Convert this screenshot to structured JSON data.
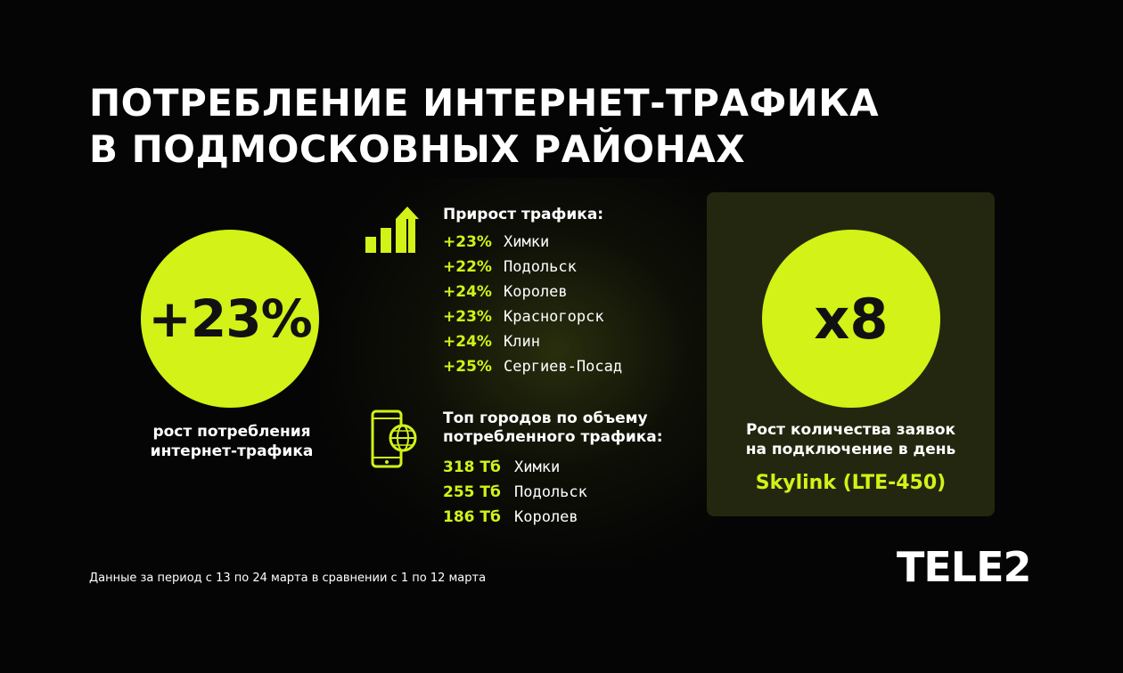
{
  "title": {
    "line1": "ПОТРЕБЛЕНИЕ ИНТЕРНЕТ-ТРАФИКА",
    "line2": "В ПОДМОСКОВНЫХ РАЙОНАХ"
  },
  "left_stat": {
    "value": "+23%",
    "caption_line1": "рост потребления",
    "caption_line2": "интернет-трафика"
  },
  "growth": {
    "title": "Прирост трафика:",
    "icon": "bar-chart-up-arrow-icon",
    "rows": [
      {
        "value": "+23%",
        "city": "Химки"
      },
      {
        "value": "+22%",
        "city": "Подольск"
      },
      {
        "value": "+24%",
        "city": "Королев"
      },
      {
        "value": "+23%",
        "city": "Красногорск"
      },
      {
        "value": "+24%",
        "city": "Клин"
      },
      {
        "value": "+25%",
        "city": "Сергиев-Посад"
      }
    ]
  },
  "top_cities": {
    "title_line1": "Топ городов по объему",
    "title_line2": "потребленного трафика:",
    "icon": "smartphone-globe-icon",
    "rows": [
      {
        "value": "318 Тб",
        "city": "Химки"
      },
      {
        "value": "255 Тб",
        "city": "Подольск"
      },
      {
        "value": "186 Тб",
        "city": "Королев"
      }
    ]
  },
  "right_stat": {
    "value": "x8",
    "caption_line1": "Рост количества заявок",
    "caption_line2": "на подключение в день",
    "product": "Skylink (LTE-450)"
  },
  "footnote": "Данные за период с 13 по 24 марта в сравнении с 1 по 12 марта",
  "logo": "TELE2",
  "colors": {
    "accent": "#d2f218",
    "background": "#050505",
    "card": "#24270f"
  }
}
